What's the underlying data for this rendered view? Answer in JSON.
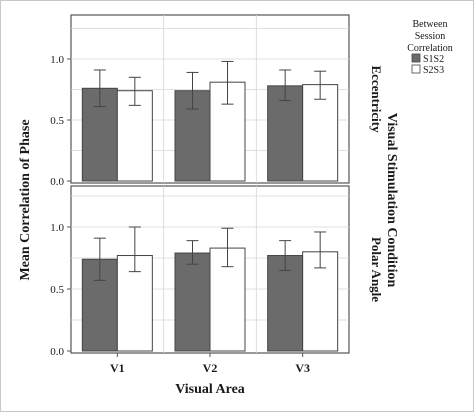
{
  "chart_data": {
    "type": "bar",
    "ylabel": "Mean Correlation of Phase",
    "xlabel": "Visual Area",
    "facet_label": "Visual Stimulation Condition",
    "categories": [
      "V1",
      "V2",
      "V3"
    ],
    "ylim": [
      0.0,
      1.25
    ],
    "yticks": [
      "0.0",
      "0.5",
      "1.0"
    ],
    "grid": true,
    "legend": {
      "title": "Between Session Correlation",
      "title_lines": [
        "Between",
        "Session",
        "Correlation"
      ],
      "placement": "top-right",
      "entries": [
        "S1S2",
        "S2S3"
      ]
    },
    "series": [
      {
        "name": "S1S2",
        "color": "#6b6b6b"
      },
      {
        "name": "S2S3",
        "color": "#ffffff"
      }
    ],
    "panels": [
      {
        "label": "Eccentricity",
        "values": {
          "S1S2": {
            "mean": [
              0.76,
              0.74,
              0.78
            ],
            "err_low": [
              0.61,
              0.59,
              0.66
            ],
            "err_high": [
              0.91,
              0.89,
              0.91
            ]
          },
          "S2S3": {
            "mean": [
              0.74,
              0.81,
              0.79
            ],
            "err_low": [
              0.62,
              0.63,
              0.67
            ],
            "err_high": [
              0.85,
              0.98,
              0.9
            ]
          }
        }
      },
      {
        "label": "Polar Angle",
        "values": {
          "S1S2": {
            "mean": [
              0.74,
              0.79,
              0.77
            ],
            "err_low": [
              0.57,
              0.7,
              0.65
            ],
            "err_high": [
              0.91,
              0.89,
              0.89
            ]
          },
          "S2S3": {
            "mean": [
              0.77,
              0.83,
              0.8
            ],
            "err_low": [
              0.64,
              0.68,
              0.67
            ],
            "err_high": [
              1.0,
              0.99,
              0.96
            ]
          }
        }
      }
    ]
  }
}
